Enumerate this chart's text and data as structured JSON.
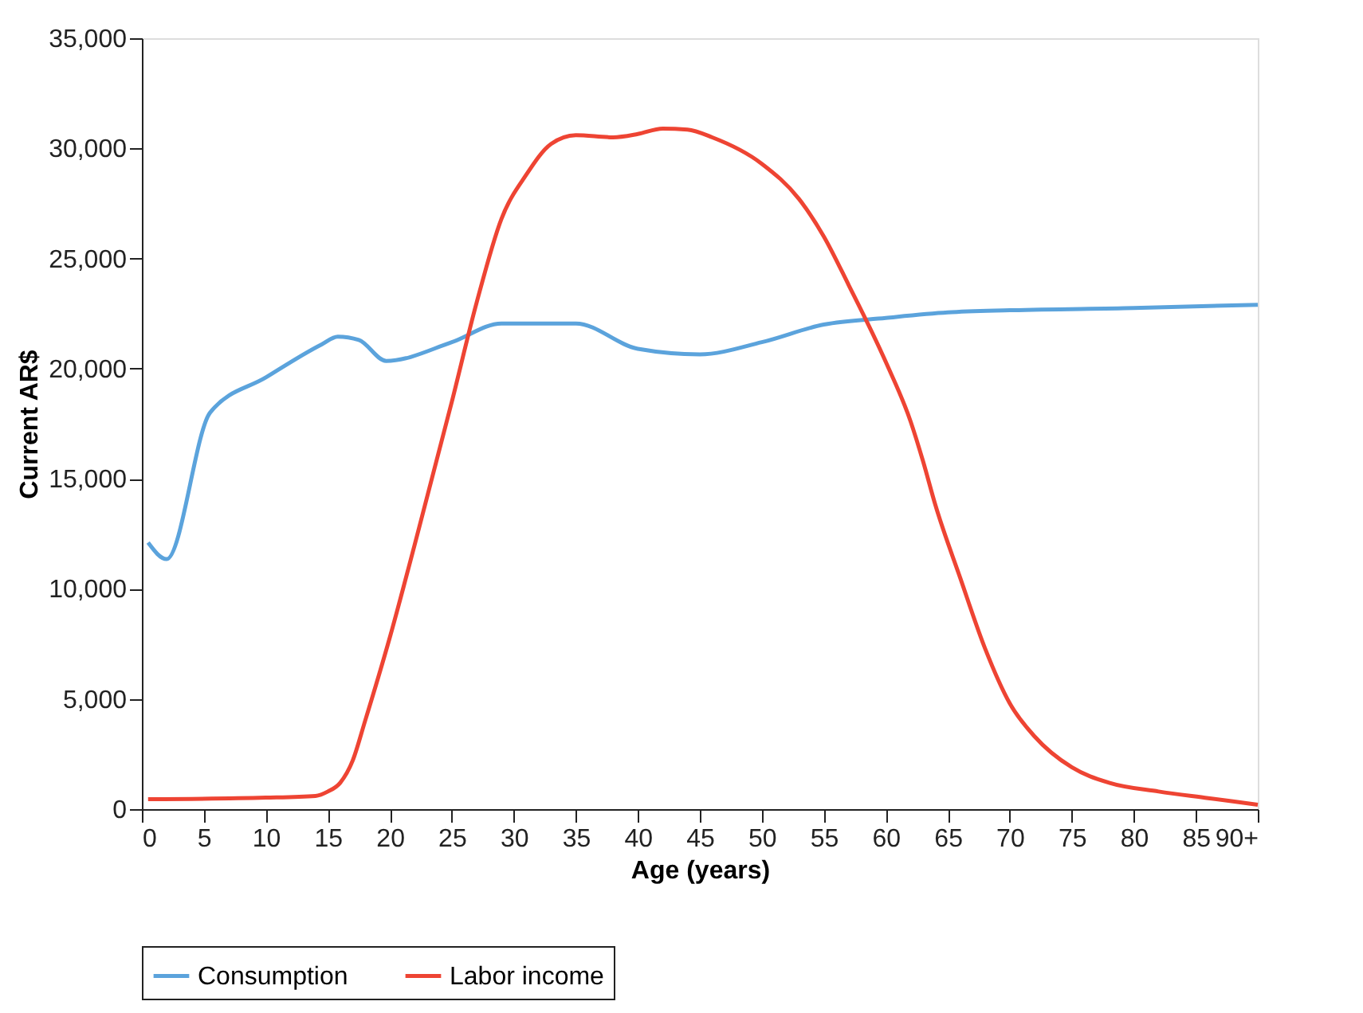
{
  "chart_data": {
    "type": "line",
    "xlabel": "Age (years)",
    "ylabel": "Current AR$",
    "xlim": [
      0,
      90
    ],
    "xticks": [
      0,
      5,
      10,
      15,
      20,
      25,
      30,
      35,
      40,
      45,
      50,
      55,
      60,
      65,
      70,
      75,
      80,
      85,
      {
        "value": 90,
        "label": "90+"
      }
    ],
    "ylim": [
      0,
      35000
    ],
    "yticks": [
      0,
      {
        "value": 5000,
        "label": "5,000"
      },
      {
        "value": 10000,
        "label": "10,000"
      },
      {
        "value": 15000,
        "label": "15,000"
      },
      {
        "value": 20000,
        "label": "20,000"
      },
      {
        "value": 25000,
        "label": "25,000"
      },
      {
        "value": 30000,
        "label": "30,000"
      },
      {
        "value": 35000,
        "label": "35,000"
      }
    ],
    "grid": false,
    "legend": "bottom",
    "line_style": "solid",
    "marker": "none",
    "series": [
      {
        "name": "Consumption",
        "color": "#5ba3dc",
        "x": [
          0.5,
          2,
          5.5,
          10,
          14.5,
          15.8,
          17.5,
          19.7,
          25,
          29,
          35,
          40,
          45,
          50,
          55,
          60,
          65,
          70,
          80,
          90
        ],
        "values": [
          12100,
          11350,
          18000,
          19600,
          21100,
          21450,
          21300,
          20350,
          21200,
          22050,
          22050,
          20900,
          20650,
          21200,
          22000,
          22300,
          22550,
          22650,
          22750,
          22900
        ]
      },
      {
        "name": "Labor income",
        "color": "#ee4433",
        "x": [
          0.5,
          10,
          14,
          15,
          16,
          17,
          18,
          20,
          22,
          25,
          27,
          29,
          31,
          33,
          35,
          38,
          40,
          42,
          44,
          46,
          50,
          53,
          55,
          57,
          60,
          62,
          63,
          64,
          66,
          68,
          70,
          72,
          75,
          78,
          82,
          86,
          90
        ],
        "values": [
          450,
          520,
          600,
          800,
          1200,
          2200,
          4000,
          7800,
          12000,
          18500,
          23000,
          26800,
          28800,
          30200,
          30600,
          30500,
          30650,
          30900,
          30850,
          30500,
          29300,
          27700,
          26000,
          23800,
          20300,
          17600,
          15800,
          13800,
          10500,
          7300,
          4800,
          3300,
          1900,
          1200,
          800,
          500,
          200
        ]
      }
    ]
  }
}
